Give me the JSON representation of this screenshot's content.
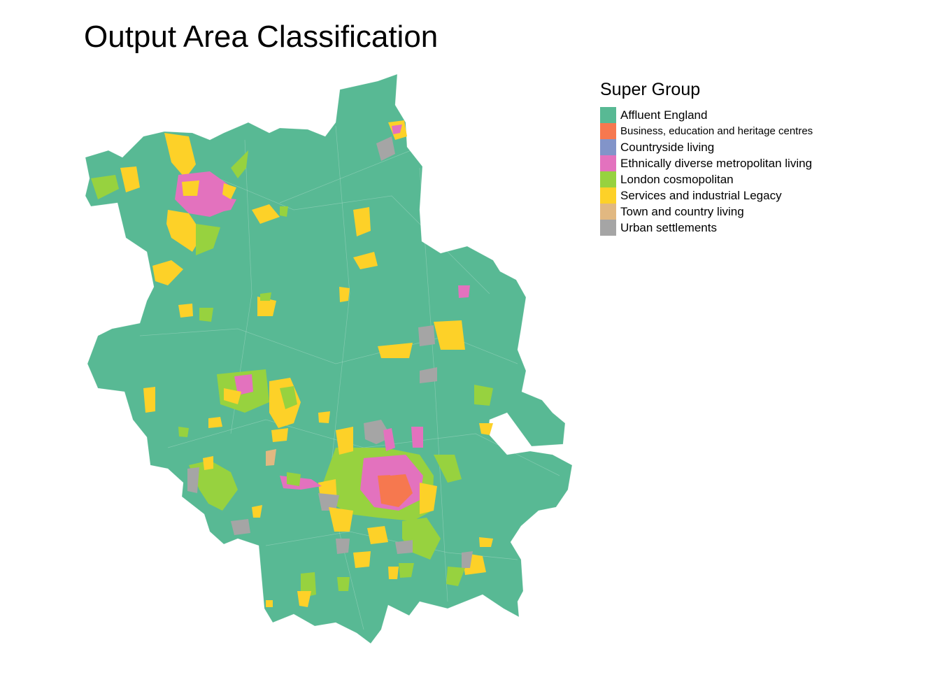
{
  "title": "Output Area Classification",
  "legend": {
    "title": "Super Group",
    "items": [
      {
        "label": "Affluent England",
        "color": "#58b994"
      },
      {
        "label": "Business, education and heritage centres",
        "color": "#f6784f"
      },
      {
        "label": "Countryside living",
        "color": "#8294c9"
      },
      {
        "label": "Ethnically diverse metropolitan living",
        "color": "#e372be"
      },
      {
        "label": "London cosmopolitan",
        "color": "#97d23f"
      },
      {
        "label": "Services and industrial Legacy",
        "color": "#fdd128"
      },
      {
        "label": "Town and country living",
        "color": "#e1b881"
      },
      {
        "label": "Urban settlements",
        "color": "#a5a5a5"
      }
    ]
  }
}
